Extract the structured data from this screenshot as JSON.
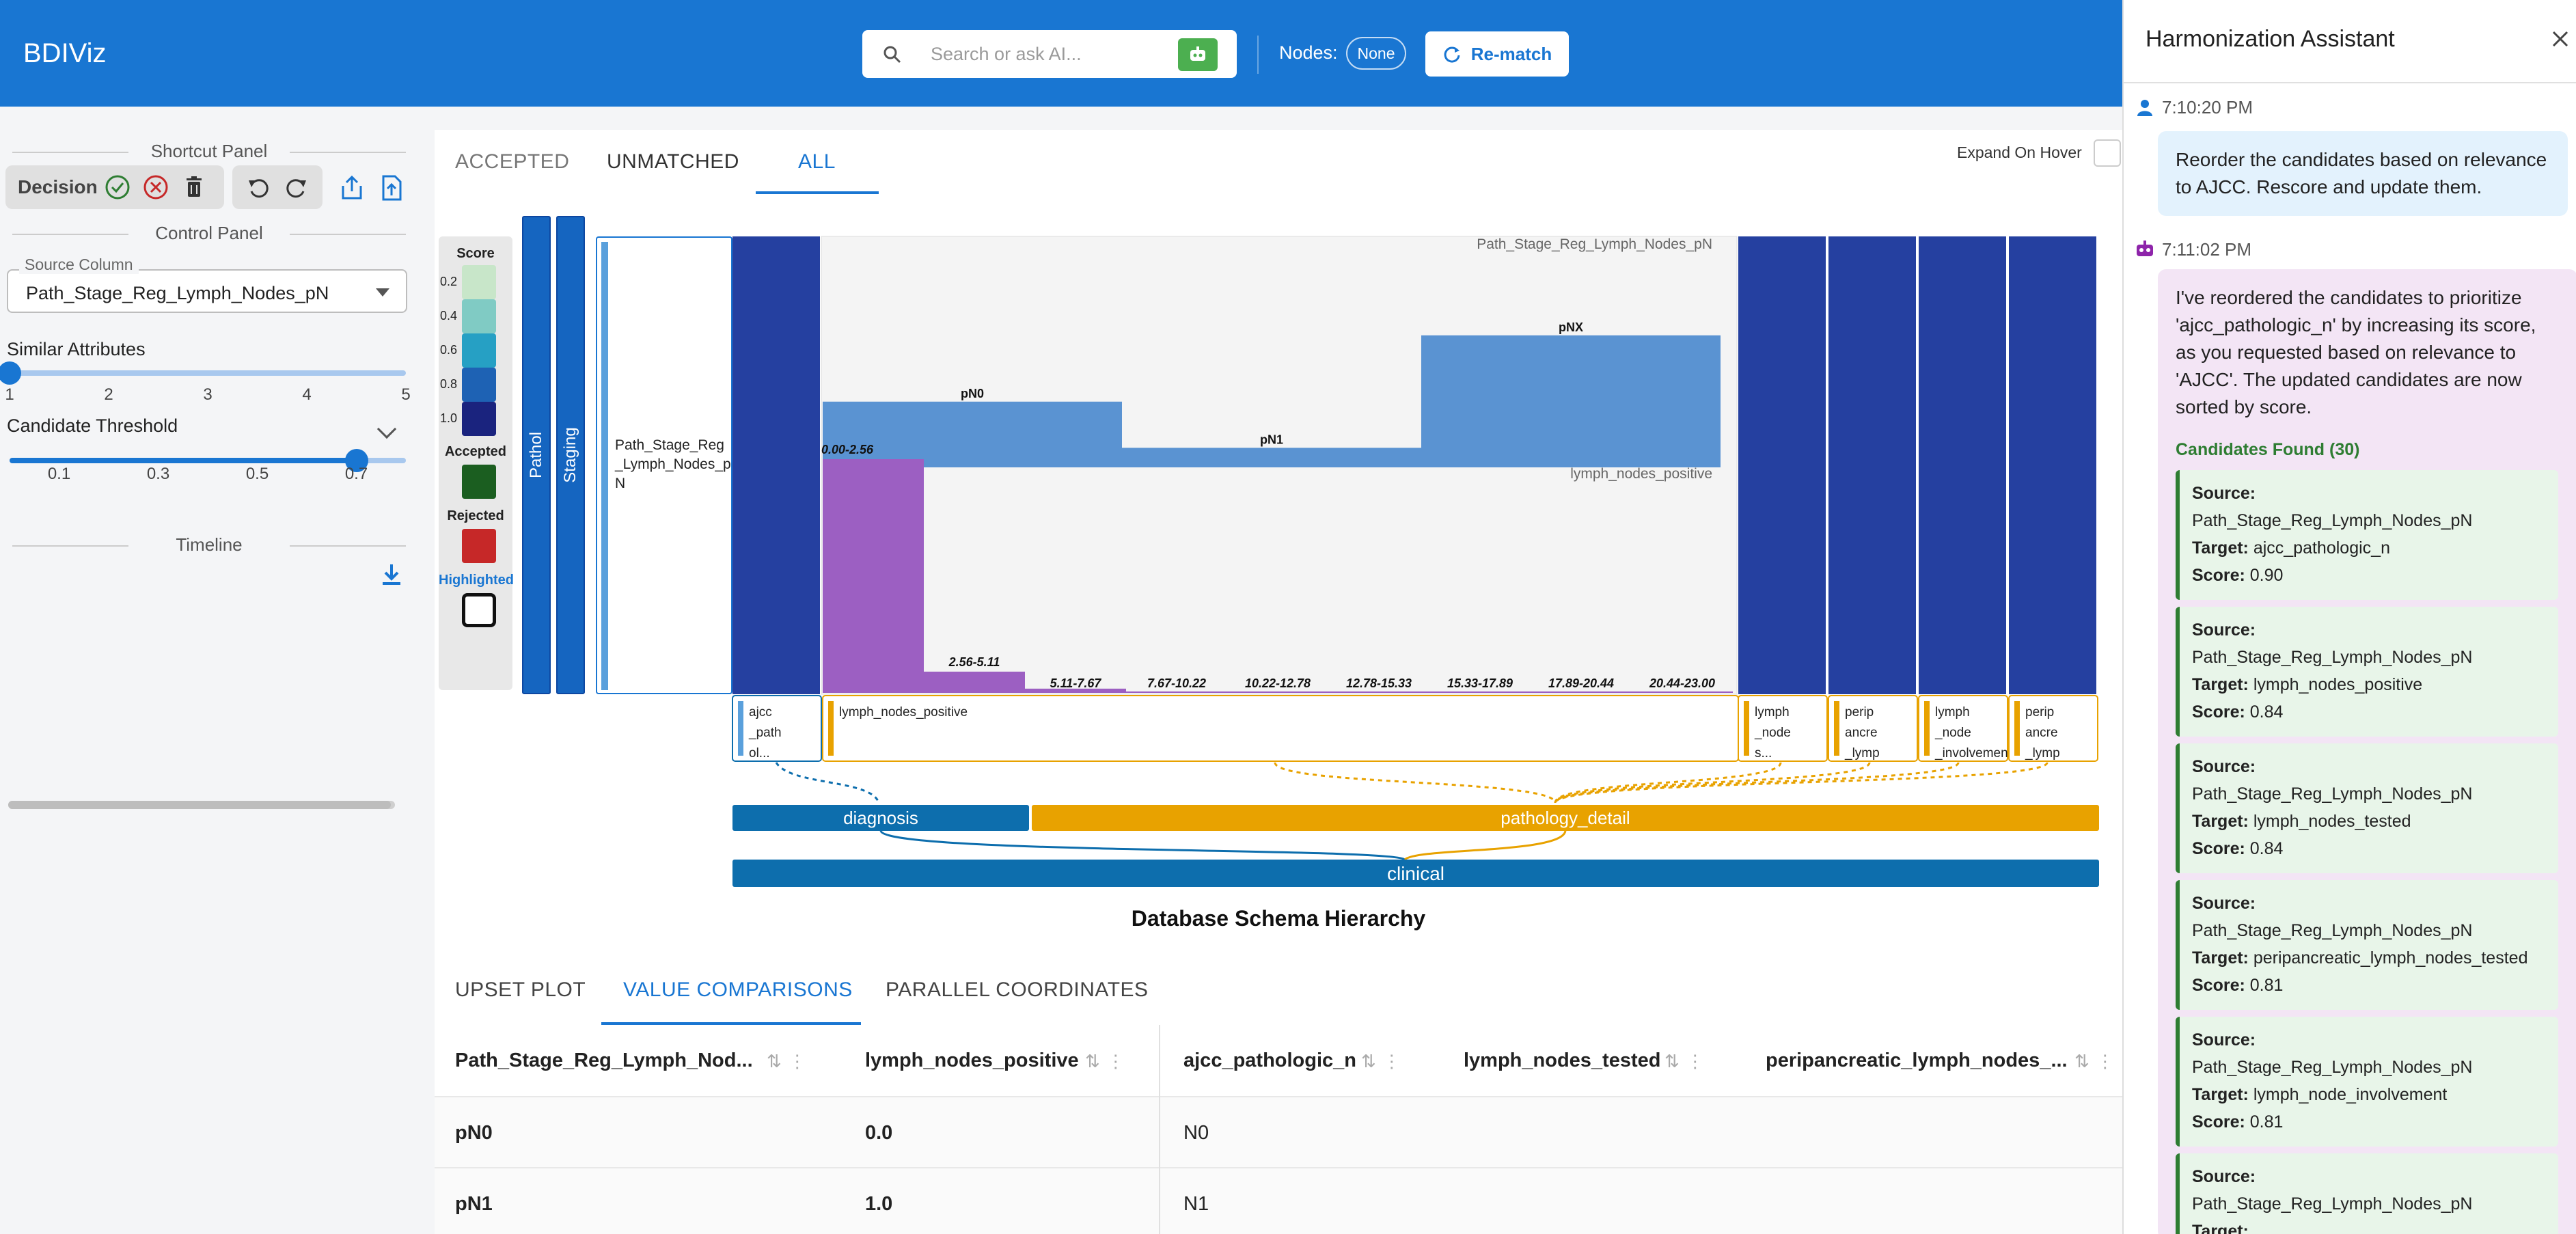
{
  "app": {
    "title": "BDIViz"
  },
  "header": {
    "search_placeholder": "Search or ask AI...",
    "nodes_label": "Nodes:",
    "nodes_value": "None",
    "rematch_label": "Re-match"
  },
  "left": {
    "shortcut_title": "Shortcut Panel",
    "decision_label": "Decision",
    "control_title": "Control Panel",
    "source_column_label": "Source Column",
    "source_column_value": "Path_Stage_Reg_Lymph_Nodes_pN",
    "similar_title": "Similar Attributes",
    "similar_ticks": [
      "1",
      "2",
      "3",
      "4",
      "5"
    ],
    "similar_value": 1,
    "threshold_title": "Candidate Threshold",
    "threshold_ticks": [
      "0.1",
      "0.3",
      "0.5",
      "0.7"
    ],
    "threshold_value": 0.7,
    "timeline_title": "Timeline"
  },
  "main": {
    "tabs": [
      "ACCEPTED",
      "UNMATCHED",
      "ALL"
    ],
    "active_tab": "ALL",
    "expand_label": "Expand On Hover",
    "legend": {
      "score_title": "Score",
      "score_levels": [
        {
          "label": "0.2",
          "color": "#c8e6c9"
        },
        {
          "label": "0.4",
          "color": "#80cbc4"
        },
        {
          "label": "0.6",
          "color": "#26a0c4"
        },
        {
          "label": "0.8",
          "color": "#1e62b4"
        },
        {
          "label": "1.0",
          "color": "#1a237e"
        }
      ],
      "accepted_title": "Accepted",
      "accepted_color": "#1b5e20",
      "rejected_title": "Rejected",
      "rejected_color": "#c62828",
      "highlighted_title": "Highlighted"
    },
    "vbars": [
      "Pathol",
      "Staging"
    ],
    "source_box_label": "Path_Stage_Reg_Lymph_Nodes_pN",
    "viz": {
      "source_attr": "Path_Stage_Reg_Lymph_Nodes_pN",
      "target_attr": "lymph_nodes_positive",
      "source_bars": [
        {
          "label": "pN0",
          "value": 0.3
        },
        {
          "label": "pN1",
          "value": 0.07
        },
        {
          "label": "pNX",
          "value": 0.63
        }
      ],
      "hist_bins": [
        "0.00-2.56",
        "2.56-5.11",
        "5.11-7.67",
        "7.67-10.22",
        "10.22-12.78",
        "12.78-15.33",
        "15.33-17.89",
        "17.89-20.44",
        "20.44-23.00"
      ],
      "hist_values": [
        0.82,
        0.07,
        0.01,
        0,
        0,
        0,
        0,
        0,
        0
      ],
      "target_columns": [
        {
          "label": "ajcc_pathol...",
          "lines": [
            "ajcc",
            "_path",
            "ol..."
          ]
        },
        {
          "label": "lymph_nodes_positive",
          "lines": [
            "lymph_nodes_positive"
          ]
        },
        {
          "label": "lymph_nodes...",
          "lines": [
            "lymph",
            "_node",
            "s..."
          ]
        },
        {
          "label": "peripancre_lymp",
          "lines": [
            "perip",
            "ancre",
            "_lymp"
          ]
        },
        {
          "label": "lymph_node_involvement",
          "lines": [
            "lymph",
            "_node",
            "_involvement"
          ]
        },
        {
          "label": "peripancre_lymp",
          "lines": [
            "perip",
            "ancre",
            "_lymp"
          ]
        }
      ],
      "categories": [
        "diagnosis",
        "pathology_detail"
      ],
      "root": "clinical",
      "colors": {
        "primary": "#2540a0",
        "blue_bar": "#5a93d2",
        "purple": "#9c5fc2",
        "orange": "#e8a200",
        "hierarchy_blue": "#0d6ead"
      }
    },
    "caption": "Database Schema Hierarchy",
    "bottom_tabs": [
      "UPSET PLOT",
      "VALUE COMPARISONS",
      "PARALLEL COORDINATES"
    ],
    "bottom_active": "VALUE COMPARISONS",
    "table": {
      "headers": [
        "Path_Stage_Reg_Lymph_Nod...",
        "lymph_nodes_positive",
        "ajcc_pathologic_n",
        "lymph_nodes_tested",
        "peripancreatic_lymph_nodes_..."
      ],
      "rows": [
        [
          "pN0",
          "0.0",
          "N0",
          "",
          ""
        ],
        [
          "pN1",
          "1.0",
          "N1",
          "",
          ""
        ]
      ]
    }
  },
  "assistant": {
    "title": "Harmonization Assistant",
    "user_time": "7:10:20 PM",
    "user_message": "Reorder the candidates based on relevance to AJCC. Rescore and update them.",
    "ai_time": "7:11:02 PM",
    "ai_message": "I've reordered the candidates to prioritize 'ajcc_pathologic_n' by increasing its score, as you requested based on relevance to 'AJCC'. The updated candidates are now sorted by score.",
    "candidates_found": "Candidates Found (30)",
    "labels": {
      "source": "Source:",
      "target": "Target:",
      "score": "Score:"
    },
    "candidates": [
      {
        "source": "Path_Stage_Reg_Lymph_Nodes_pN",
        "target": "ajcc_pathologic_n",
        "score": "0.90"
      },
      {
        "source": "Path_Stage_Reg_Lymph_Nodes_pN",
        "target": "lymph_nodes_positive",
        "score": "0.84"
      },
      {
        "source": "Path_Stage_Reg_Lymph_Nodes_pN",
        "target": "lymph_nodes_tested",
        "score": "0.84"
      },
      {
        "source": "Path_Stage_Reg_Lymph_Nodes_pN",
        "target": "peripancreatic_lymph_nodes_tested",
        "score": "0.81"
      },
      {
        "source": "Path_Stage_Reg_Lymph_Nodes_pN",
        "target": "lymph_node_involvement",
        "score": "0.81"
      },
      {
        "source": "Path_Stage_Reg_Lymph_Nodes_pN",
        "target": "",
        "score": ""
      }
    ]
  }
}
